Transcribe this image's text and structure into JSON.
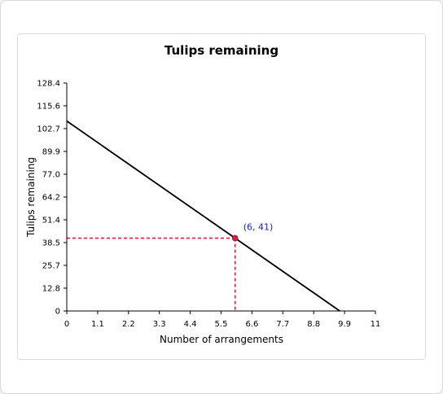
{
  "chart_data": {
    "type": "line",
    "title": "Tulips remaining",
    "xlabel": "Number of arrangements",
    "ylabel": "Tulips remaining",
    "xlim": [
      0,
      11
    ],
    "ylim": [
      0,
      128.4
    ],
    "x_ticks": [
      "0",
      "1.1",
      "2.2",
      "3.3",
      "4.4",
      "5.5",
      "6.6",
      "7.7",
      "8.8",
      "9.9",
      "11"
    ],
    "y_ticks": [
      "0",
      "12.8",
      "25.7",
      "38.5",
      "51.4",
      "64.2",
      "77.0",
      "89.9",
      "102.7",
      "115.6",
      "128.4"
    ],
    "series": [
      {
        "values": [
          [
            0,
            107
          ],
          [
            9.73,
            0
          ]
        ],
        "color": "#000000"
      }
    ],
    "highlight_point": {
      "x": 6,
      "y": 41,
      "label": "(6, 41)",
      "color": "#e8173b",
      "label_color": "#1a1adb"
    },
    "guide_color": "#e8173b",
    "grid": false,
    "legend": "none"
  }
}
